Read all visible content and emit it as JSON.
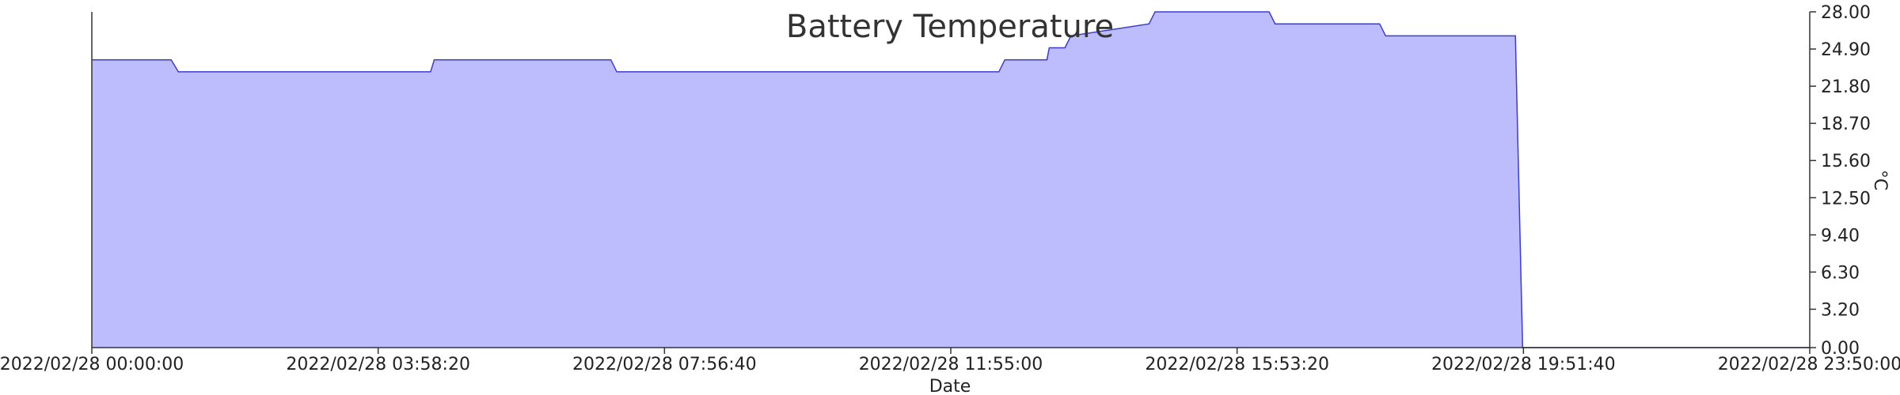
{
  "chart_data": {
    "type": "area",
    "title": "Battery Temperature",
    "xlabel": "Date",
    "ylabel": "°C",
    "ylim": [
      0,
      28
    ],
    "yticks": [
      "0.00",
      "3.20",
      "6.30",
      "9.40",
      "12.50",
      "15.60",
      "18.70",
      "21.80",
      "24.90",
      "28.00"
    ],
    "xticks": [
      "2022/02/28 00:00:00",
      "2022/02/28 03:58:20",
      "2022/02/28 07:56:40",
      "2022/02/28 11:55:00",
      "2022/02/28 15:53:20",
      "2022/02/28 19:51:40",
      "2022/02/28 23:50:00"
    ],
    "xlim": [
      "2022/02/28 00:00:00",
      "2022/02/28 23:50:00"
    ],
    "y_axis_position": "right",
    "grid": false,
    "legend": "none",
    "colors": {
      "fill": "#bdbdfd",
      "line": "#3b3bd6"
    },
    "series": [
      {
        "x": [
          "2022/02/28 00:00:00",
          "2022/02/28 01:06:00",
          "2022/02/28 01:12:00",
          "2022/02/28 04:42:00",
          "2022/02/28 04:45:00",
          "2022/02/28 07:12:00",
          "2022/02/28 07:17:00",
          "2022/02/28 12:35:00",
          "2022/02/28 12:40:00",
          "2022/02/28 13:15:00",
          "2022/02/28 13:17:00",
          "2022/02/28 13:30:00",
          "2022/02/28 13:35:00",
          "2022/02/28 14:40:00",
          "2022/02/28 14:45:00",
          "2022/02/28 16:20:00",
          "2022/02/28 16:25:00",
          "2022/02/28 17:52:00",
          "2022/02/28 17:57:00",
          "2022/02/28 19:45:00",
          "2022/02/28 19:51:00",
          "2022/02/28 23:50:00"
        ],
        "values": [
          24,
          24,
          23,
          23,
          24,
          24,
          23,
          23,
          24,
          24,
          25,
          25,
          26,
          27,
          28,
          28,
          27,
          27,
          26,
          26,
          0,
          0
        ]
      }
    ]
  }
}
